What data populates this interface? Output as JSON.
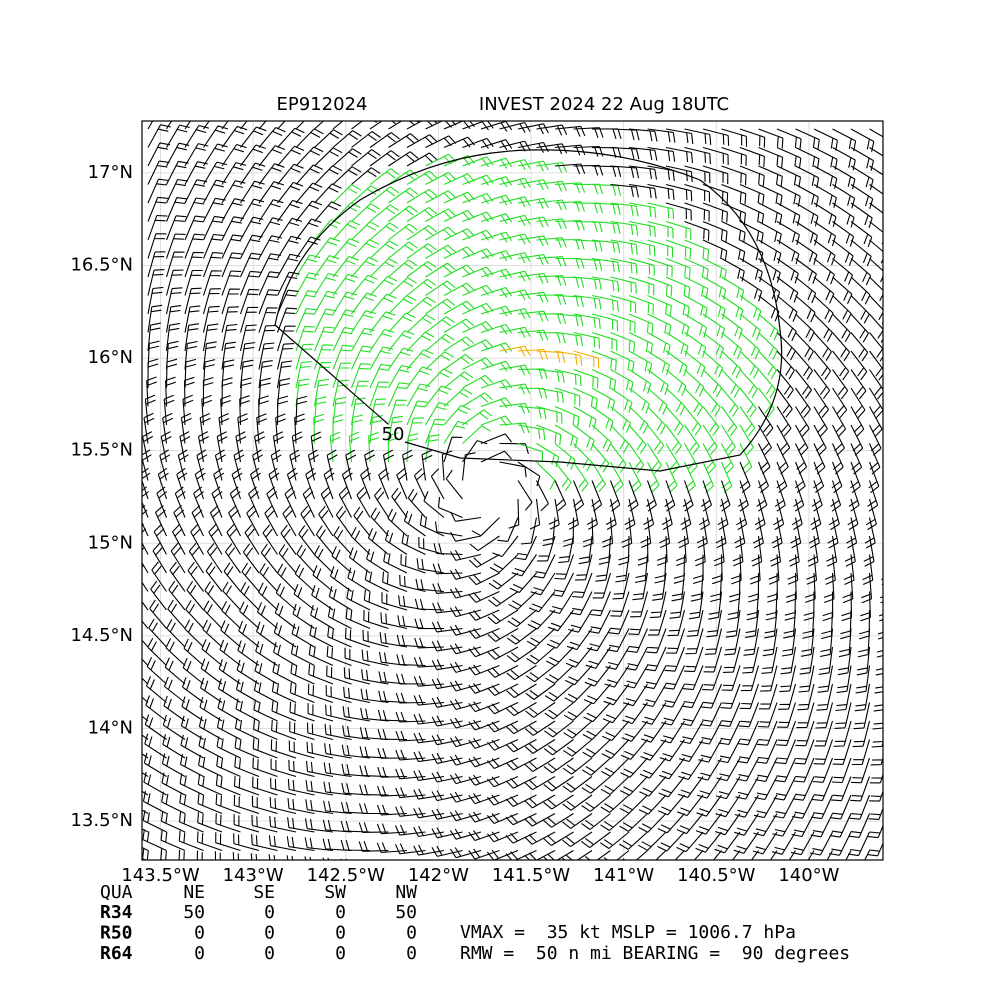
{
  "chart_data": {
    "type": "barbs",
    "title_left": "EP912024",
    "title_right": "INVEST 2024 22 Aug 18UTC",
    "xlim": [
      -143.6,
      -139.6
    ],
    "ylim": [
      13.29,
      17.28
    ],
    "xticks": [
      {
        "value": -143.5,
        "label": "143.5°W"
      },
      {
        "value": -143,
        "label": "143°W"
      },
      {
        "value": -142.5,
        "label": "142.5°W"
      },
      {
        "value": -142,
        "label": "142°W"
      },
      {
        "value": -141.5,
        "label": "141.5°W"
      },
      {
        "value": -141,
        "label": "141°W"
      },
      {
        "value": -140.5,
        "label": "140.5°W"
      },
      {
        "value": -140,
        "label": "140°W"
      }
    ],
    "yticks": [
      {
        "value": 13.5,
        "label": "13.5°N"
      },
      {
        "value": 14,
        "label": "14°N"
      },
      {
        "value": 14.5,
        "label": "14.5°N"
      },
      {
        "value": 15,
        "label": "15°N"
      },
      {
        "value": 15.5,
        "label": "15.5°N"
      },
      {
        "value": 16,
        "label": "16°N"
      },
      {
        "value": 16.5,
        "label": "16.5°N"
      },
      {
        "value": 17,
        "label": "17°N"
      }
    ],
    "grid": true,
    "contour_label": "50",
    "colors": {
      "default": "#000000",
      "r34": "#22dd22",
      "r50": "#f0b000"
    },
    "radii_table": {
      "header": [
        "QUA",
        "NE",
        "SE",
        "SW",
        "NW"
      ],
      "rows": [
        [
          "R34",
          "50",
          "0",
          "0",
          "50"
        ],
        [
          "R50",
          "0",
          "0",
          "0",
          "0"
        ],
        [
          "R64",
          "0",
          "0",
          "0",
          "0"
        ]
      ]
    },
    "info_lines": [
      "VMAX =  35 kt MSLP = 1006.7 hPa",
      "RMW =  50 n mi BEARING =  90 degrees"
    ]
  }
}
